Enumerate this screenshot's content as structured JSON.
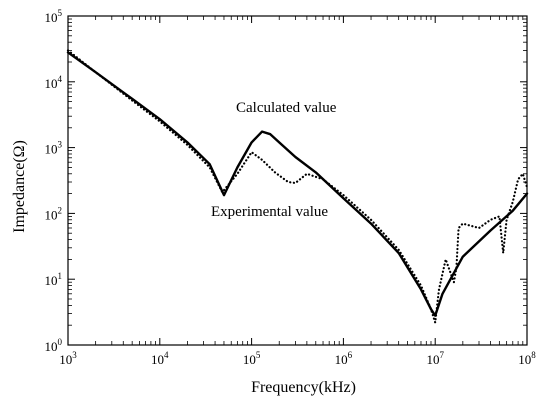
{
  "chart_data": {
    "type": "line",
    "title": "",
    "xlabel": "Frequency(kHz)",
    "ylabel": "Impedance(Ω)",
    "x_scale": "log",
    "y_scale": "log",
    "xlim": [
      1000,
      100000000
    ],
    "ylim": [
      1,
      100000
    ],
    "grid": false,
    "x_ticks": [
      {
        "base": "10",
        "exp": "3",
        "value": 1000
      },
      {
        "base": "10",
        "exp": "4",
        "value": 10000
      },
      {
        "base": "10",
        "exp": "5",
        "value": 100000
      },
      {
        "base": "10",
        "exp": "6",
        "value": 1000000
      },
      {
        "base": "10",
        "exp": "7",
        "value": 10000000
      },
      {
        "base": "10",
        "exp": "8",
        "value": 100000000
      }
    ],
    "y_ticks": [
      {
        "base": "10",
        "exp": "0",
        "value": 1
      },
      {
        "base": "10",
        "exp": "1",
        "value": 10
      },
      {
        "base": "10",
        "exp": "2",
        "value": 100
      },
      {
        "base": "10",
        "exp": "3",
        "value": 1000
      },
      {
        "base": "10",
        "exp": "4",
        "value": 10000
      },
      {
        "base": "10",
        "exp": "5",
        "value": 100000
      }
    ],
    "series": [
      {
        "name": "Calculated value",
        "style": "solid",
        "color": "#000000",
        "x": [
          1000,
          2000,
          5000,
          10000,
          20000,
          35000,
          50000,
          70000,
          100000,
          130000,
          160000,
          200000,
          300000,
          500000,
          1000000,
          2000000,
          4000000,
          7000000,
          9000000,
          10000000,
          12000000,
          20000000,
          40000000,
          70000000,
          100000000
        ],
        "y": [
          28000,
          14000,
          5500,
          2700,
          1200,
          560,
          190,
          500,
          1200,
          1750,
          1600,
          1200,
          720,
          420,
          170,
          70,
          25,
          7,
          3.5,
          2.8,
          6,
          22,
          55,
          110,
          200
        ]
      },
      {
        "name": "Experimental value",
        "style": "dotted",
        "color": "#000000",
        "x": [
          1000,
          2000,
          5000,
          10000,
          20000,
          35000,
          48000,
          70000,
          100000,
          130000,
          180000,
          250000,
          300000,
          400000,
          600000,
          1000000,
          2000000,
          4000000,
          7000000,
          9000000,
          10000000,
          11000000,
          13000000,
          16000000,
          17000000,
          18000000,
          20000000,
          30000000,
          40000000,
          50000000,
          55000000,
          60000000,
          70000000,
          80000000,
          90000000,
          100000000
        ],
        "y": [
          30000,
          14000,
          5200,
          2500,
          1100,
          500,
          210,
          400,
          850,
          650,
          420,
          300,
          290,
          400,
          330,
          190,
          80,
          28,
          8,
          3.5,
          2.2,
          7,
          20,
          9,
          15,
          60,
          70,
          60,
          80,
          90,
          25,
          80,
          150,
          330,
          400,
          250
        ]
      }
    ],
    "annotations": [
      "Calculated value",
      "Experimental value"
    ]
  }
}
